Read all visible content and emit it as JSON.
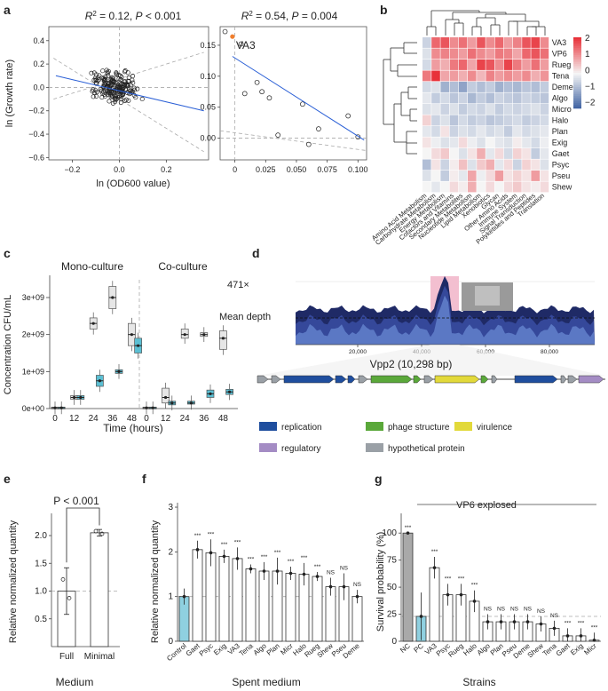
{
  "panels": {
    "a": {
      "label": "a",
      "left": {
        "title_r2": "= 0.12, ",
        "title_p": " < 0.001",
        "xlabel": "ln (OD600 value)",
        "ylabel": "ln (Growth rate)",
        "xticks": [
          "−0.2",
          "0.0",
          "0.2"
        ],
        "yticks": [
          "0.4",
          "0.2",
          "0.0",
          "−0.2",
          "−0.4",
          "−0.6"
        ]
      },
      "right": {
        "title_r2": "= 0.54, ",
        "title_p": " = 0.004",
        "highlight": "VA3",
        "xticks": [
          "0",
          "0.025",
          "0.050",
          "0.075",
          "0.100"
        ],
        "yticks": [
          "0.15",
          "0.10",
          "0.05",
          "0.00"
        ]
      }
    },
    "b": {
      "label": "b",
      "rows": [
        "VA3",
        "VP6",
        "Rueg",
        "Tena",
        "Deme",
        "Algo",
        "Micro",
        "Halo",
        "Plan",
        "Exig",
        "Gaet",
        "Psyc",
        "Pseu",
        "Shew"
      ],
      "cols": [
        "Amino Acid Metabolism",
        "Carbohydrate Metabolism",
        "Energy Metabolism",
        "Cofactors and Vitamins",
        "Secondary Metabolites",
        "Nucleotide Metabolism",
        "Lipid Metabolism",
        "Xenobiotics",
        "Glycan",
        "Other Amino Acids",
        "Immune System",
        "Signal Transduction",
        "Polyketides and Peptides",
        "Translation"
      ],
      "legend": [
        "2",
        "1",
        "0",
        "−1",
        "−2"
      ],
      "colors": {
        "high": "#e8323a",
        "mid": "#f5f5f5",
        "low": "#3b5fa0"
      }
    },
    "c": {
      "label": "c",
      "left_title": "Mono-culture",
      "right_title": "Co-culture",
      "ylabel": "Concentration CFU/mL",
      "xlabel": "Time (hours)",
      "yticks": [
        "3e+09",
        "2e+09",
        "1e+09",
        "0e+00"
      ],
      "xticks": [
        "0",
        "12",
        "24",
        "36",
        "48"
      ]
    },
    "d": {
      "label": "d",
      "max_depth": "471×",
      "mean_label": "Mean depth",
      "xticks": [
        "20,000",
        "40,000",
        "60,000",
        "80,000"
      ],
      "contig": "Vpp2 (10,298 bp)",
      "legend": [
        {
          "label": "replication",
          "color": "#1f4e9e"
        },
        {
          "label": "phage structure",
          "color": "#5aa83a"
        },
        {
          "label": "virulence",
          "color": "#e2d93a"
        },
        {
          "label": "regulatory",
          "color": "#a48cc4"
        },
        {
          "label": "hypothetical protein",
          "color": "#9aa0a6"
        }
      ]
    },
    "e": {
      "label": "e",
      "p_label": "P < 0.001",
      "ylabel": "Relative normalized quantity",
      "xlabel": "Medium",
      "categories": [
        "Full",
        "Minimal"
      ],
      "values": [
        1.0,
        2.05
      ],
      "yticks": [
        "2.0",
        "1.5",
        "1.0",
        "0.5"
      ]
    },
    "f": {
      "label": "f",
      "ylabel": "Relative normalized quantity",
      "xlabel": "Spent medium",
      "categories": [
        "Control",
        "Gaet",
        "Psyc",
        "Exig",
        "VA3",
        "Tena",
        "Algo",
        "Plan",
        "Micr",
        "Halo",
        "Rueg",
        "Shew",
        "Pseu",
        "Deme"
      ],
      "values": [
        1.0,
        2.05,
        1.98,
        1.9,
        1.85,
        1.62,
        1.57,
        1.57,
        1.52,
        1.5,
        1.45,
        1.22,
        1.22,
        1.0
      ],
      "sig": [
        "",
        "***",
        "***",
        "***",
        "***",
        "***",
        "***",
        "***",
        "***",
        "***",
        "***",
        "NS",
        "NS",
        "NS"
      ],
      "yticks": [
        "3",
        "2",
        "1",
        "0"
      ]
    },
    "g": {
      "label": "g",
      "banner": "VP6 explosed",
      "ylabel": "Survival probability (%)",
      "xlabel": "Strains",
      "categories": [
        "NC",
        "PC",
        "VA3",
        "Psyc",
        "Rueg",
        "Halo",
        "Algo",
        "Plan",
        "Pseu",
        "Deme",
        "Shew",
        "Tena",
        "Gaet",
        "Exig",
        "Micr"
      ],
      "values": [
        100,
        23,
        68,
        43,
        43,
        37,
        18,
        18,
        18,
        18,
        16,
        12,
        5,
        5,
        1
      ],
      "sig": [
        "***",
        "",
        "***",
        "***",
        "***",
        "***",
        "NS",
        "NS",
        "NS",
        "NS",
        "NS",
        "NS",
        "***",
        "***",
        "***"
      ],
      "yticks": [
        "100",
        "75",
        "50",
        "25",
        "0"
      ]
    }
  }
}
